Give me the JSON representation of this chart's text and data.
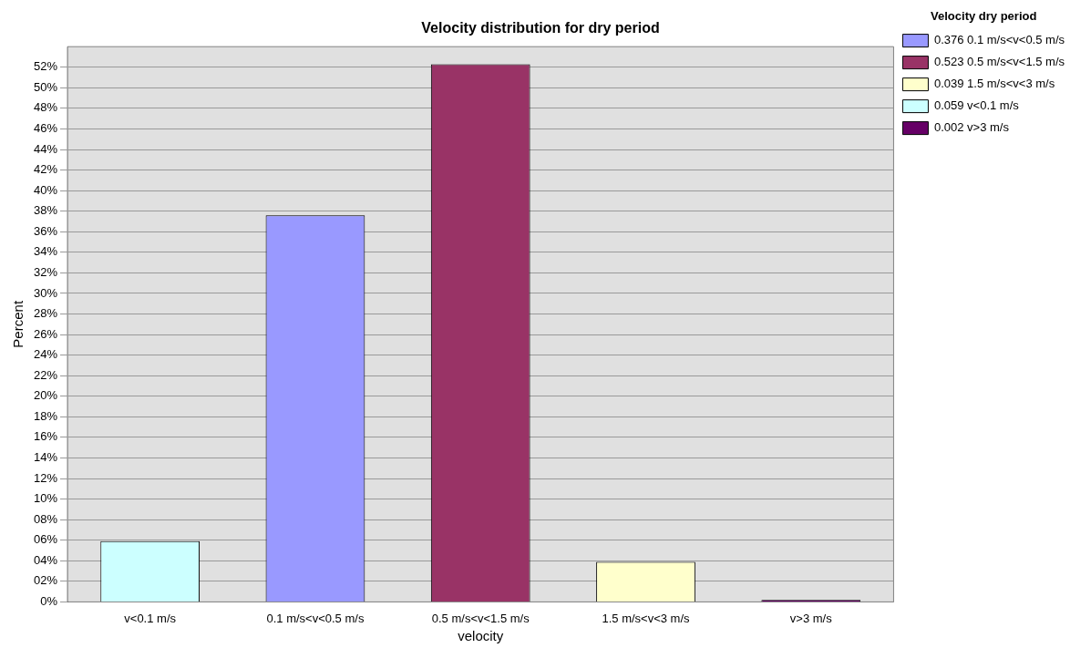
{
  "chart_data": {
    "type": "bar",
    "title": "Velocity distribution for dry period",
    "xlabel": "velocity",
    "ylabel": "Percent",
    "legend_title": "Velocity dry period",
    "categories": [
      "v<0.1 m/s",
      "0.1 m/s<v<0.5 m/s",
      "0.5 m/s<v<1.5 m/s",
      "1.5 m/s<v<3 m/s",
      "v>3 m/s"
    ],
    "stacked": true,
    "series": [
      {
        "name": "0.376 0.1 m/s<v<0.5 m/s",
        "color": "#9999ff",
        "values": [
          null,
          37.6,
          null,
          null,
          null
        ]
      },
      {
        "name": "0.523 0.5 m/s<v<1.5 m/s",
        "color": "#993366",
        "values": [
          null,
          null,
          52.3,
          null,
          null
        ]
      },
      {
        "name": "0.039 1.5 m/s<v<3 m/s",
        "color": "#ffffcc",
        "values": [
          null,
          null,
          null,
          3.9,
          null
        ]
      },
      {
        "name": "0.059 v<0.1 m/s",
        "color": "#ccffff",
        "values": [
          5.9,
          null,
          null,
          null,
          null
        ]
      },
      {
        "name": "0.002 v>3 m/s",
        "color": "#660066",
        "values": [
          null,
          null,
          null,
          null,
          0.2
        ]
      }
    ],
    "ylim": [
      0,
      54
    ],
    "yticks": [
      {
        "value": 0,
        "label": "0%"
      },
      {
        "value": 2,
        "label": "02%"
      },
      {
        "value": 4,
        "label": "04%"
      },
      {
        "value": 6,
        "label": "06%"
      },
      {
        "value": 8,
        "label": "08%"
      },
      {
        "value": 10,
        "label": "10%"
      },
      {
        "value": 12,
        "label": "12%"
      },
      {
        "value": 14,
        "label": "14%"
      },
      {
        "value": 16,
        "label": "16%"
      },
      {
        "value": 18,
        "label": "18%"
      },
      {
        "value": 20,
        "label": "20%"
      },
      {
        "value": 22,
        "label": "22%"
      },
      {
        "value": 24,
        "label": "24%"
      },
      {
        "value": 26,
        "label": "26%"
      },
      {
        "value": 28,
        "label": "28%"
      },
      {
        "value": 30,
        "label": "30%"
      },
      {
        "value": 32,
        "label": "32%"
      },
      {
        "value": 34,
        "label": "34%"
      },
      {
        "value": 36,
        "label": "36%"
      },
      {
        "value": 38,
        "label": "38%"
      },
      {
        "value": 40,
        "label": "40%"
      },
      {
        "value": 42,
        "label": "42%"
      },
      {
        "value": 44,
        "label": "44%"
      },
      {
        "value": 46,
        "label": "46%"
      },
      {
        "value": 48,
        "label": "48%"
      },
      {
        "value": 50,
        "label": "50%"
      },
      {
        "value": 52,
        "label": "52%"
      }
    ],
    "grid": "y",
    "legend": "top right"
  }
}
